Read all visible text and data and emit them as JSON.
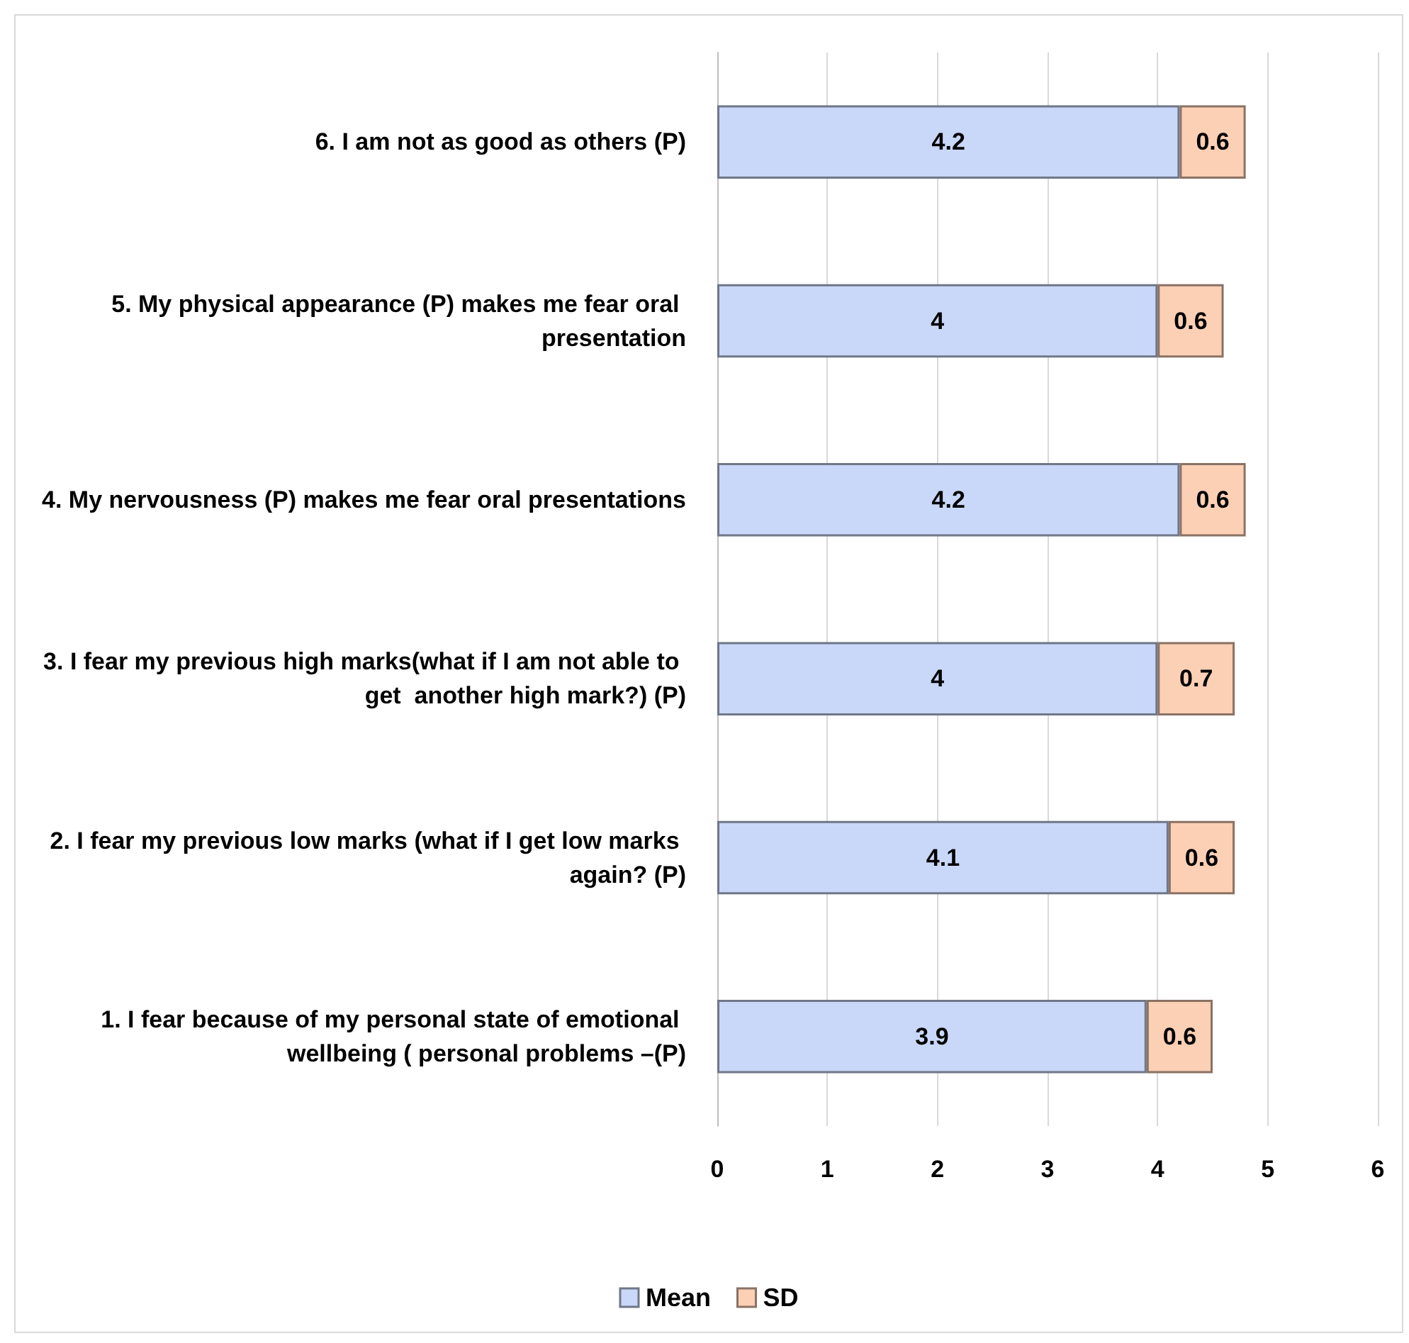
{
  "chart_data": {
    "type": "bar",
    "orientation": "horizontal",
    "stacked": true,
    "categories": [
      "6. I am not as good as others (P)",
      "5. My physical appearance (P) makes me fear oral presentation",
      "4. My nervousness (P) makes me fear oral presentations",
      "3. I fear my previous high marks(what if I am not able to get  another high mark?) (P)",
      "2. I fear my previous low marks (what if I get low marks again? (P)",
      "1. I fear because of my personal state of emotional wellbeing ( personal problems –(P)"
    ],
    "series": [
      {
        "name": "Mean",
        "color": "#c9d8f8",
        "values": [
          4.2,
          4,
          4.2,
          4,
          4.1,
          3.9
        ]
      },
      {
        "name": "SD",
        "color": "#fbd0b5",
        "values": [
          0.6,
          0.6,
          0.6,
          0.7,
          0.6,
          0.6
        ]
      }
    ],
    "xlim": [
      0,
      6
    ],
    "xticks": [
      0,
      1,
      2,
      3,
      4,
      5,
      6
    ],
    "grid": "x",
    "legend": "bottom",
    "data_labels": true
  }
}
